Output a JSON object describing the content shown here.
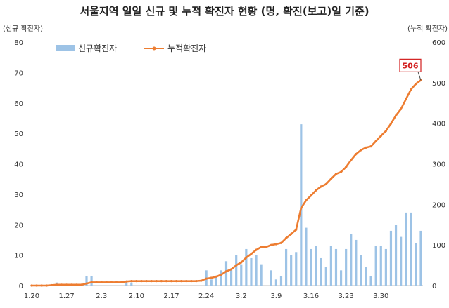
{
  "chart_data": {
    "type": "bar+line",
    "title": "서울지역 일일 신규 및 누적 확진자 현황 (명, 확진(보고)일 기준)",
    "left_axis_unit": "(신규 확진자)",
    "right_axis_unit": "(누적 확진자)",
    "left_ylim": [
      0,
      80
    ],
    "left_ticks": [
      0,
      10,
      20,
      30,
      40,
      50,
      60,
      70,
      80
    ],
    "right_ylim": [
      0,
      600
    ],
    "right_ticks": [
      0,
      100,
      200,
      300,
      400,
      500,
      600
    ],
    "x_tick_labels": [
      "1.20",
      "1.27",
      "2.3",
      "2.10",
      "2.17",
      "2.24",
      "3.2",
      "3.9",
      "3.16",
      "3.23",
      "3.30"
    ],
    "x_tick_index": [
      0,
      7,
      14,
      21,
      28,
      35,
      42,
      49,
      56,
      63,
      70
    ],
    "grid": false,
    "legend_position": "top-left",
    "colors": {
      "bar": "#9dc3e6",
      "line": "#ed7d31",
      "callout_border": "#d21f1f"
    },
    "series": [
      {
        "name": "신규확진자",
        "kind": "bar",
        "axis": "left",
        "values": [
          0,
          0,
          0,
          0,
          0,
          1,
          0,
          0,
          0,
          0,
          0,
          3,
          3,
          0,
          0,
          0,
          0,
          0,
          0,
          1,
          1,
          0,
          0,
          0,
          0,
          0,
          0,
          0,
          0,
          0,
          0,
          0,
          0,
          0,
          0,
          5,
          2,
          3,
          5,
          8,
          5,
          10,
          7,
          12,
          9,
          10,
          7,
          0,
          5,
          2,
          3,
          12,
          10,
          11,
          53,
          19,
          12,
          13,
          9,
          6,
          13,
          12,
          5,
          12,
          17,
          15,
          10,
          6,
          3,
          13,
          13,
          12,
          18,
          20,
          16,
          24,
          24,
          14,
          18
        ]
      },
      {
        "name": "누적확진자",
        "kind": "line",
        "axis": "right",
        "values": [
          0,
          0,
          0,
          0,
          1,
          2,
          2,
          2,
          2,
          2,
          2,
          5,
          8,
          8,
          8,
          8,
          8,
          8,
          8,
          10,
          11,
          11,
          11,
          11,
          11,
          11,
          11,
          11,
          11,
          11,
          11,
          11,
          11,
          11,
          12,
          17,
          19,
          22,
          27,
          35,
          40,
          50,
          57,
          69,
          78,
          88,
          95,
          95,
          100,
          102,
          105,
          117,
          127,
          138,
          191,
          210,
          222,
          235,
          244,
          250,
          263,
          275,
          280,
          292,
          309,
          324,
          334,
          340,
          343,
          356,
          369,
          381,
          399,
          419,
          435,
          459,
          483,
          497,
          506
        ]
      }
    ],
    "annotation": {
      "label": "506",
      "value": 506
    }
  }
}
